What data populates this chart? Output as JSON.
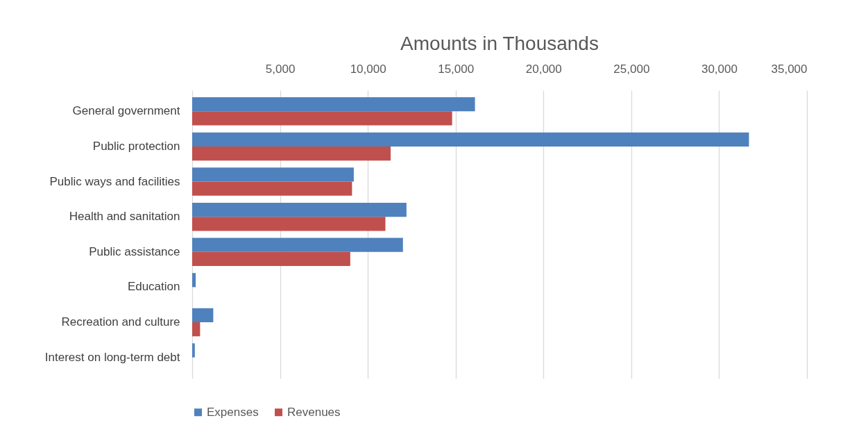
{
  "chart_data": {
    "type": "bar",
    "orientation": "horizontal",
    "title": "Amounts in Thousands",
    "categories": [
      "General government",
      "Public protection",
      "Public ways and facilities",
      "Health and sanitation",
      "Public assistance",
      "Education",
      "Recreation and culture",
      "Interest on long-term debt"
    ],
    "series": [
      {
        "name": "Expenses",
        "color": "#4f81bd",
        "values": [
          16100,
          31700,
          9200,
          12200,
          12000,
          200,
          1200,
          150
        ]
      },
      {
        "name": "Revenues",
        "color": "#c0504d",
        "values": [
          14800,
          11300,
          9100,
          11000,
          9000,
          0,
          450,
          0
        ]
      }
    ],
    "xlim": [
      0,
      35000
    ],
    "xticks": [
      {
        "value": 0,
        "label": null
      },
      {
        "value": 5000,
        "label": "5,000"
      },
      {
        "value": 10000,
        "label": "10,000"
      },
      {
        "value": 15000,
        "label": "15,000"
      },
      {
        "value": 20000,
        "label": "20,000"
      },
      {
        "value": 25000,
        "label": "25,000"
      },
      {
        "value": 30000,
        "label": "30,000"
      },
      {
        "value": 35000,
        "label": "35,000"
      }
    ],
    "grid": "x",
    "legend": "bottom"
  }
}
